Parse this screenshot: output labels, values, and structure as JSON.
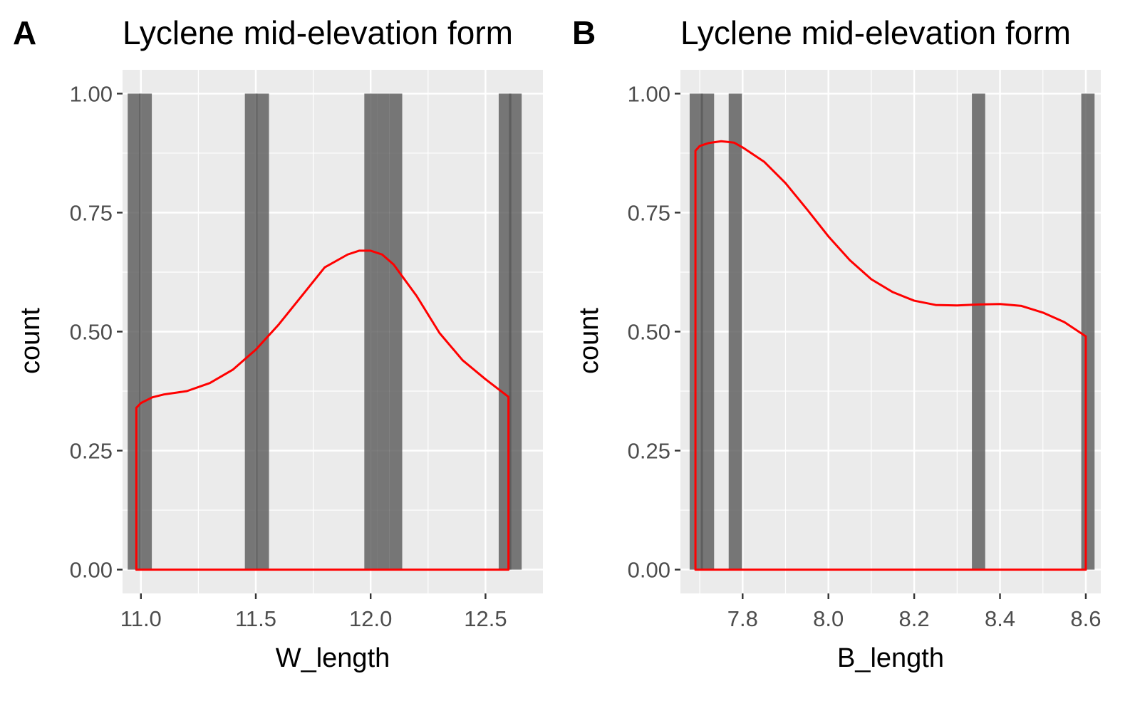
{
  "chart_data": [
    {
      "type": "bar",
      "panel_label": "A",
      "title": "Lyclene mid-elevation form",
      "xlabel": "W_length",
      "ylabel": "count",
      "xlim": [
        10.92,
        12.75
      ],
      "ylim": [
        -0.05,
        1.05
      ],
      "xticks": [
        11.0,
        11.5,
        12.0,
        12.5
      ],
      "xtick_labels": [
        "11.0",
        "11.5",
        "12.0",
        "12.5"
      ],
      "yticks": [
        0,
        0.25,
        0.5,
        0.75,
        1.0
      ],
      "ytick_labels": [
        "0.00",
        "0.25",
        "0.50",
        "0.75",
        "1.00"
      ],
      "grid": true,
      "bar_width": 0.055,
      "bars": [
        {
          "x": 10.97,
          "count": 1
        },
        {
          "x": 11.02,
          "count": 1
        },
        {
          "x": 11.48,
          "count": 1
        },
        {
          "x": 11.53,
          "count": 1
        },
        {
          "x": 12.0,
          "count": 1
        },
        {
          "x": 12.055,
          "count": 1
        },
        {
          "x": 12.11,
          "count": 1
        },
        {
          "x": 12.585,
          "count": 1
        },
        {
          "x": 12.63,
          "count": 1
        }
      ],
      "density": {
        "color": "#ff0000",
        "x": [
          10.98,
          11.0,
          11.05,
          11.1,
          11.2,
          11.3,
          11.4,
          11.5,
          11.6,
          11.7,
          11.8,
          11.9,
          11.95,
          12.0,
          12.05,
          12.1,
          12.2,
          12.3,
          12.4,
          12.5,
          12.6
        ],
        "y": [
          0.34,
          0.35,
          0.362,
          0.368,
          0.375,
          0.392,
          0.42,
          0.462,
          0.515,
          0.575,
          0.635,
          0.662,
          0.67,
          0.67,
          0.662,
          0.641,
          0.575,
          0.497,
          0.44,
          0.4,
          0.363
        ]
      }
    },
    {
      "type": "bar",
      "panel_label": "B",
      "title": "Lyclene mid-elevation form",
      "xlabel": "B_length",
      "ylabel": "count",
      "xlim": [
        7.655,
        8.635
      ],
      "ylim": [
        -0.05,
        1.05
      ],
      "xticks": [
        7.8,
        8.0,
        8.2,
        8.4,
        8.6
      ],
      "xtick_labels": [
        "7.8",
        "8.0",
        "8.2",
        "8.4",
        "8.6"
      ],
      "yticks": [
        0,
        0.25,
        0.5,
        0.75,
        1.0
      ],
      "ytick_labels": [
        "0.00",
        "0.25",
        "0.50",
        "0.75",
        "1.00"
      ],
      "grid": true,
      "bar_width": 0.031,
      "bars": [
        {
          "x": 7.692,
          "count": 1
        },
        {
          "x": 7.718,
          "count": 1
        },
        {
          "x": 7.783,
          "count": 1
        },
        {
          "x": 8.35,
          "count": 1
        },
        {
          "x": 8.605,
          "count": 1
        }
      ],
      "density": {
        "color": "#ff0000",
        "x": [
          7.69,
          7.7,
          7.72,
          7.75,
          7.78,
          7.8,
          7.85,
          7.9,
          7.95,
          8.0,
          8.05,
          8.1,
          8.15,
          8.2,
          8.25,
          8.3,
          8.35,
          8.4,
          8.45,
          8.5,
          8.55,
          8.6
        ],
        "y": [
          0.88,
          0.89,
          0.896,
          0.9,
          0.897,
          0.887,
          0.857,
          0.812,
          0.757,
          0.7,
          0.65,
          0.61,
          0.583,
          0.565,
          0.556,
          0.555,
          0.557,
          0.558,
          0.554,
          0.54,
          0.52,
          0.49
        ]
      }
    }
  ]
}
